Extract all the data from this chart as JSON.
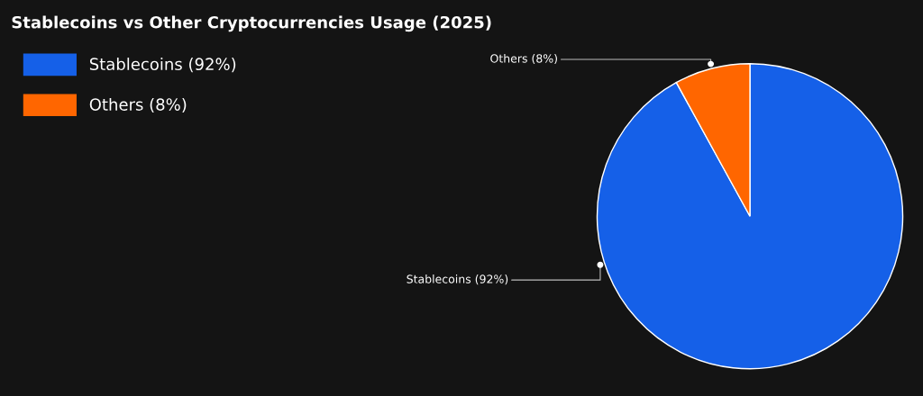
{
  "chart_data": {
    "type": "pie",
    "title": "Stablecoins vs Other Cryptocurrencies Usage (2025)",
    "categories": [
      "Stablecoins (92%)",
      "Others (8%)"
    ],
    "values": [
      92,
      8
    ],
    "colors": [
      "#1560e8",
      "#ff6600"
    ],
    "value_labels": [
      "Stablecoins (92%)",
      "Others (8%)"
    ],
    "legend": "top left"
  }
}
